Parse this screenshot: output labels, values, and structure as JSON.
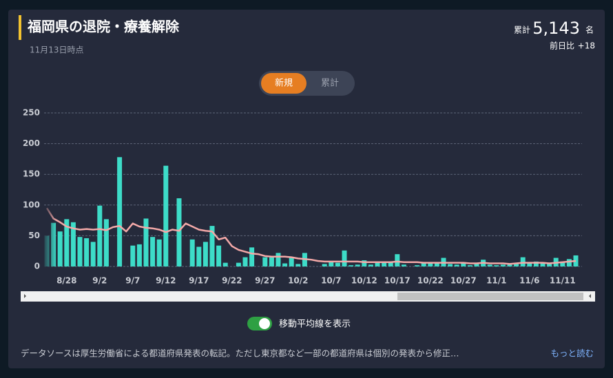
{
  "header": {
    "title": "福岡県の退院・療養解除",
    "subtitle": "11月13日時点"
  },
  "summary": {
    "total_label": "累計",
    "total": "5,143",
    "unit": "名",
    "diff_label": "前日比",
    "diff": "+18"
  },
  "tabs": [
    "新規",
    "累計"
  ],
  "toggle_label": "移動平均線を表示",
  "footer": {
    "text": "データソースは厚生労働省による都道府県発表の転記。ただし東京都など一部の都道府県は個別の発表から修正…",
    "more": "もっと読む"
  },
  "chart_data": {
    "type": "bar",
    "categories": [
      null,
      null,
      null,
      "8/28",
      null,
      null,
      null,
      null,
      "9/2",
      null,
      null,
      null,
      null,
      "9/7",
      null,
      null,
      null,
      null,
      "9/12",
      null,
      null,
      null,
      null,
      "9/17",
      null,
      null,
      null,
      null,
      "9/22",
      null,
      null,
      null,
      null,
      "9/27",
      null,
      null,
      null,
      null,
      "10/2",
      null,
      null,
      null,
      null,
      "10/7",
      null,
      null,
      null,
      null,
      "10/12",
      null,
      null,
      null,
      null,
      "10/17",
      null,
      null,
      null,
      null,
      "10/22",
      null,
      null,
      null,
      null,
      "10/27",
      null,
      null,
      null,
      null,
      "11/1",
      null,
      null,
      null,
      null,
      "11/6",
      null,
      null,
      null,
      null,
      "11/11",
      null,
      null
    ],
    "series": [
      {
        "type": "bar",
        "color": "#3ddcc8",
        "values": [
          50,
          71,
          57,
          77,
          72,
          48,
          46,
          40,
          99,
          77,
          0,
          178,
          0,
          34,
          36,
          78,
          48,
          44,
          164,
          0,
          111,
          0,
          44,
          32,
          40,
          66,
          34,
          6,
          0,
          6,
          15,
          31,
          0,
          15,
          15,
          22,
          5,
          14,
          4,
          22,
          0,
          0,
          4,
          7,
          6,
          26,
          2,
          3,
          10,
          3,
          6,
          8,
          8,
          20,
          3,
          0,
          2,
          6,
          7,
          5,
          14,
          4,
          3,
          6,
          2,
          5,
          11,
          3,
          2,
          3,
          3,
          4,
          15,
          6,
          8,
          5,
          5,
          14,
          8,
          12,
          18
        ]
      },
      {
        "type": "line",
        "color": "#f4a9a8",
        "values": [
          95,
          78,
          72,
          65,
          62,
          60,
          61,
          60,
          61,
          59,
          64,
          66,
          57,
          70,
          65,
          63,
          62,
          60,
          56,
          60,
          58,
          70,
          65,
          60,
          58,
          57,
          44,
          47,
          33,
          27,
          24,
          21,
          20,
          17,
          16,
          16,
          16,
          15,
          13,
          12,
          11,
          9,
          8,
          8,
          8,
          8,
          8,
          8,
          7,
          7,
          7,
          7,
          7,
          8,
          7,
          7,
          7,
          6,
          6,
          6,
          6,
          6,
          6,
          6,
          5,
          5,
          6,
          5,
          5,
          5,
          4,
          5,
          6,
          6,
          6,
          6,
          5,
          6,
          7,
          8,
          9
        ]
      }
    ],
    "ylim": [
      0,
      250
    ],
    "yticks": [
      0,
      50,
      100,
      150,
      200,
      250
    ],
    "grid": true
  }
}
